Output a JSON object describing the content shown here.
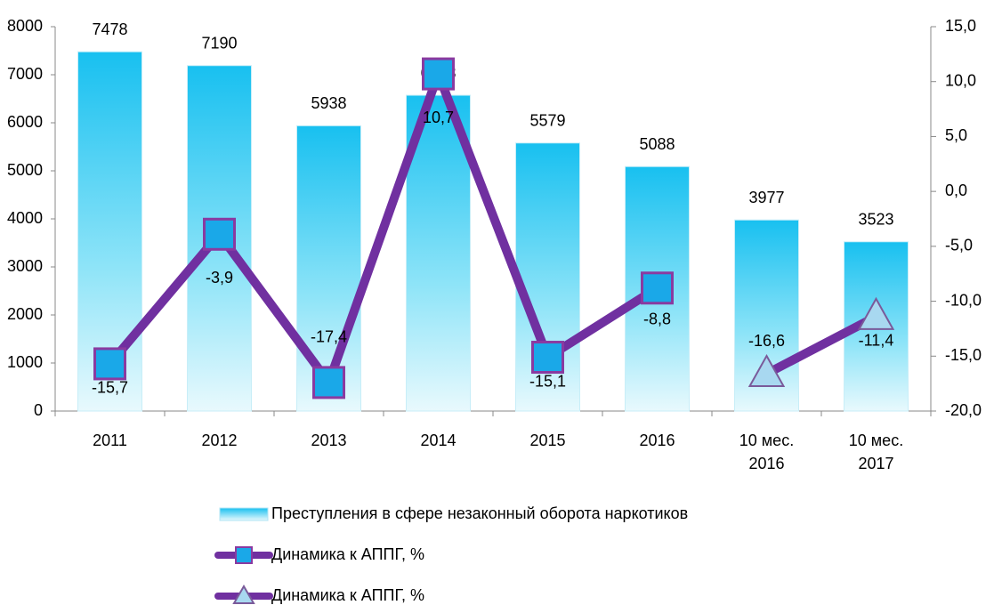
{
  "chart_data": {
    "type": "bar",
    "categories": [
      "2011",
      "2012",
      "2013",
      "2014",
      "2015",
      "2016",
      "10 мес.\n2016",
      "10 мес.\n2017"
    ],
    "ylim": [
      0,
      8000
    ],
    "yticks": [
      0,
      1000,
      2000,
      3000,
      4000,
      5000,
      6000,
      7000,
      8000
    ],
    "y2lim": [
      -20,
      15
    ],
    "y2ticks": [
      {
        "value": -20,
        "label": "-20,0"
      },
      {
        "value": -15,
        "label": "-15,0"
      },
      {
        "value": -10,
        "label": "-10,0"
      },
      {
        "value": -5,
        "label": "-5,0"
      },
      {
        "value": 0,
        "label": "0,0"
      },
      {
        "value": 5,
        "label": "5,0"
      },
      {
        "value": 10,
        "label": "10,0"
      },
      {
        "value": 15,
        "label": "15,0"
      }
    ],
    "series": [
      {
        "name": "Преступления в сфере незаконный оборота наркотиков",
        "type": "bar",
        "color": "#1ec8f0",
        "values": [
          7478,
          7190,
          5938,
          6573,
          5579,
          5088,
          3977,
          3523
        ]
      },
      {
        "name": "Динамика к АППГ, %",
        "type": "line",
        "axis": "y2",
        "marker": "square",
        "color": "#7030a0",
        "marker_color": "#1aa8e8",
        "values": [
          -15.7,
          -3.9,
          -17.4,
          10.7,
          -15.1,
          -8.8,
          null,
          null
        ],
        "value_labels": [
          "-15,7",
          "-3,9",
          "-17,4",
          "10,7",
          "-15,1",
          "-8,8",
          null,
          null
        ]
      },
      {
        "name": "Динамика к АППГ, %",
        "type": "line",
        "axis": "y2",
        "marker": "triangle",
        "color": "#7030a0",
        "marker_color": "#a8d8f0",
        "values": [
          null,
          null,
          null,
          null,
          null,
          null,
          -16.6,
          -11.4
        ],
        "value_labels": [
          null,
          null,
          null,
          null,
          null,
          null,
          "-16,6",
          "-11,4"
        ]
      }
    ],
    "legend": "bottom"
  }
}
